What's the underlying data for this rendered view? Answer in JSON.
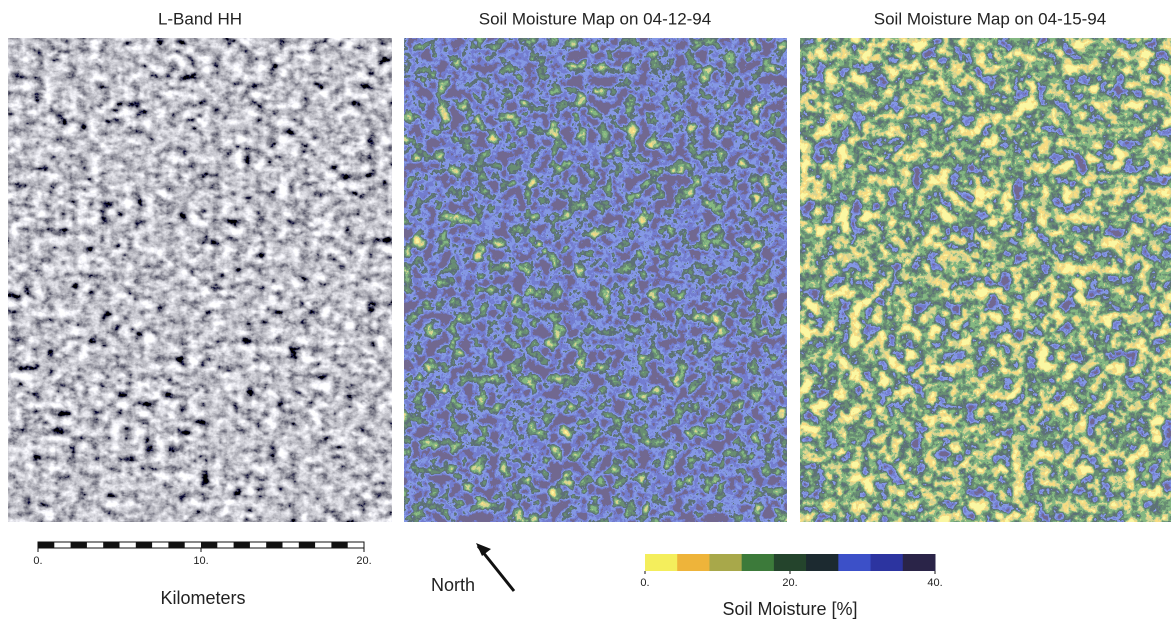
{
  "panels": [
    {
      "title": "L-Band HH"
    },
    {
      "title": "Soil Moisture Map on 04-12-94"
    },
    {
      "title": "Soil Moisture Map on 04-15-94"
    }
  ],
  "scale_bar": {
    "ticks": [
      {
        "value": 0,
        "label": "0."
      },
      {
        "value": 10,
        "label": "10."
      },
      {
        "value": 20,
        "label": "20."
      }
    ],
    "label": "Kilometers"
  },
  "north_arrow": {
    "label": "North"
  },
  "colorbar": {
    "colors": [
      "#f4ee5c",
      "#eeb43a",
      "#a8a84a",
      "#3c7a3a",
      "#24442c",
      "#1c2a30",
      "#3c50c8",
      "#2c34a0",
      "#2a2448"
    ],
    "ticks": [
      {
        "value": 0,
        "label": "0."
      },
      {
        "value": 20,
        "label": "20."
      },
      {
        "value": 40,
        "label": "40."
      }
    ],
    "label": "Soil Moisture [%]"
  }
}
